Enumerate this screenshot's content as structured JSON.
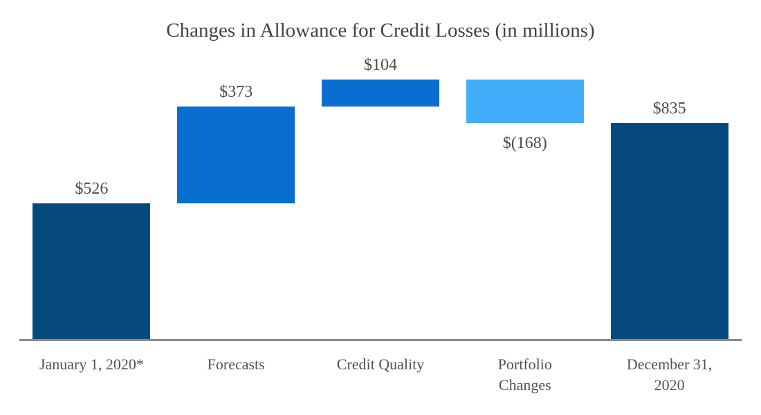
{
  "chart_data": {
    "type": "bar",
    "subtype": "waterfall",
    "title": "Changes in Allowance for Credit Losses (in millions)",
    "categories": [
      "January 1, 2020*",
      "Forecasts",
      "Credit Quality",
      "Portfolio\nChanges",
      "December 31,\n2020"
    ],
    "values": [
      526,
      373,
      104,
      -168,
      835
    ],
    "kinds": [
      "total",
      "increase",
      "increase",
      "decrease",
      "total"
    ],
    "data_labels": [
      "$526",
      "$373",
      "$104",
      "$(168)",
      "$835"
    ],
    "data_label_positions": [
      "above",
      "above",
      "above",
      "below",
      "above"
    ],
    "colors": {
      "total": "#05497D",
      "increase": "#0A6DD0",
      "decrease": "#41ADFB"
    },
    "axis_line_color": "#8A8A8A",
    "title_color": "#424242",
    "label_color": "#4A4A4A",
    "ylim": [
      0,
      1003
    ],
    "grid": false,
    "legend": false
  }
}
